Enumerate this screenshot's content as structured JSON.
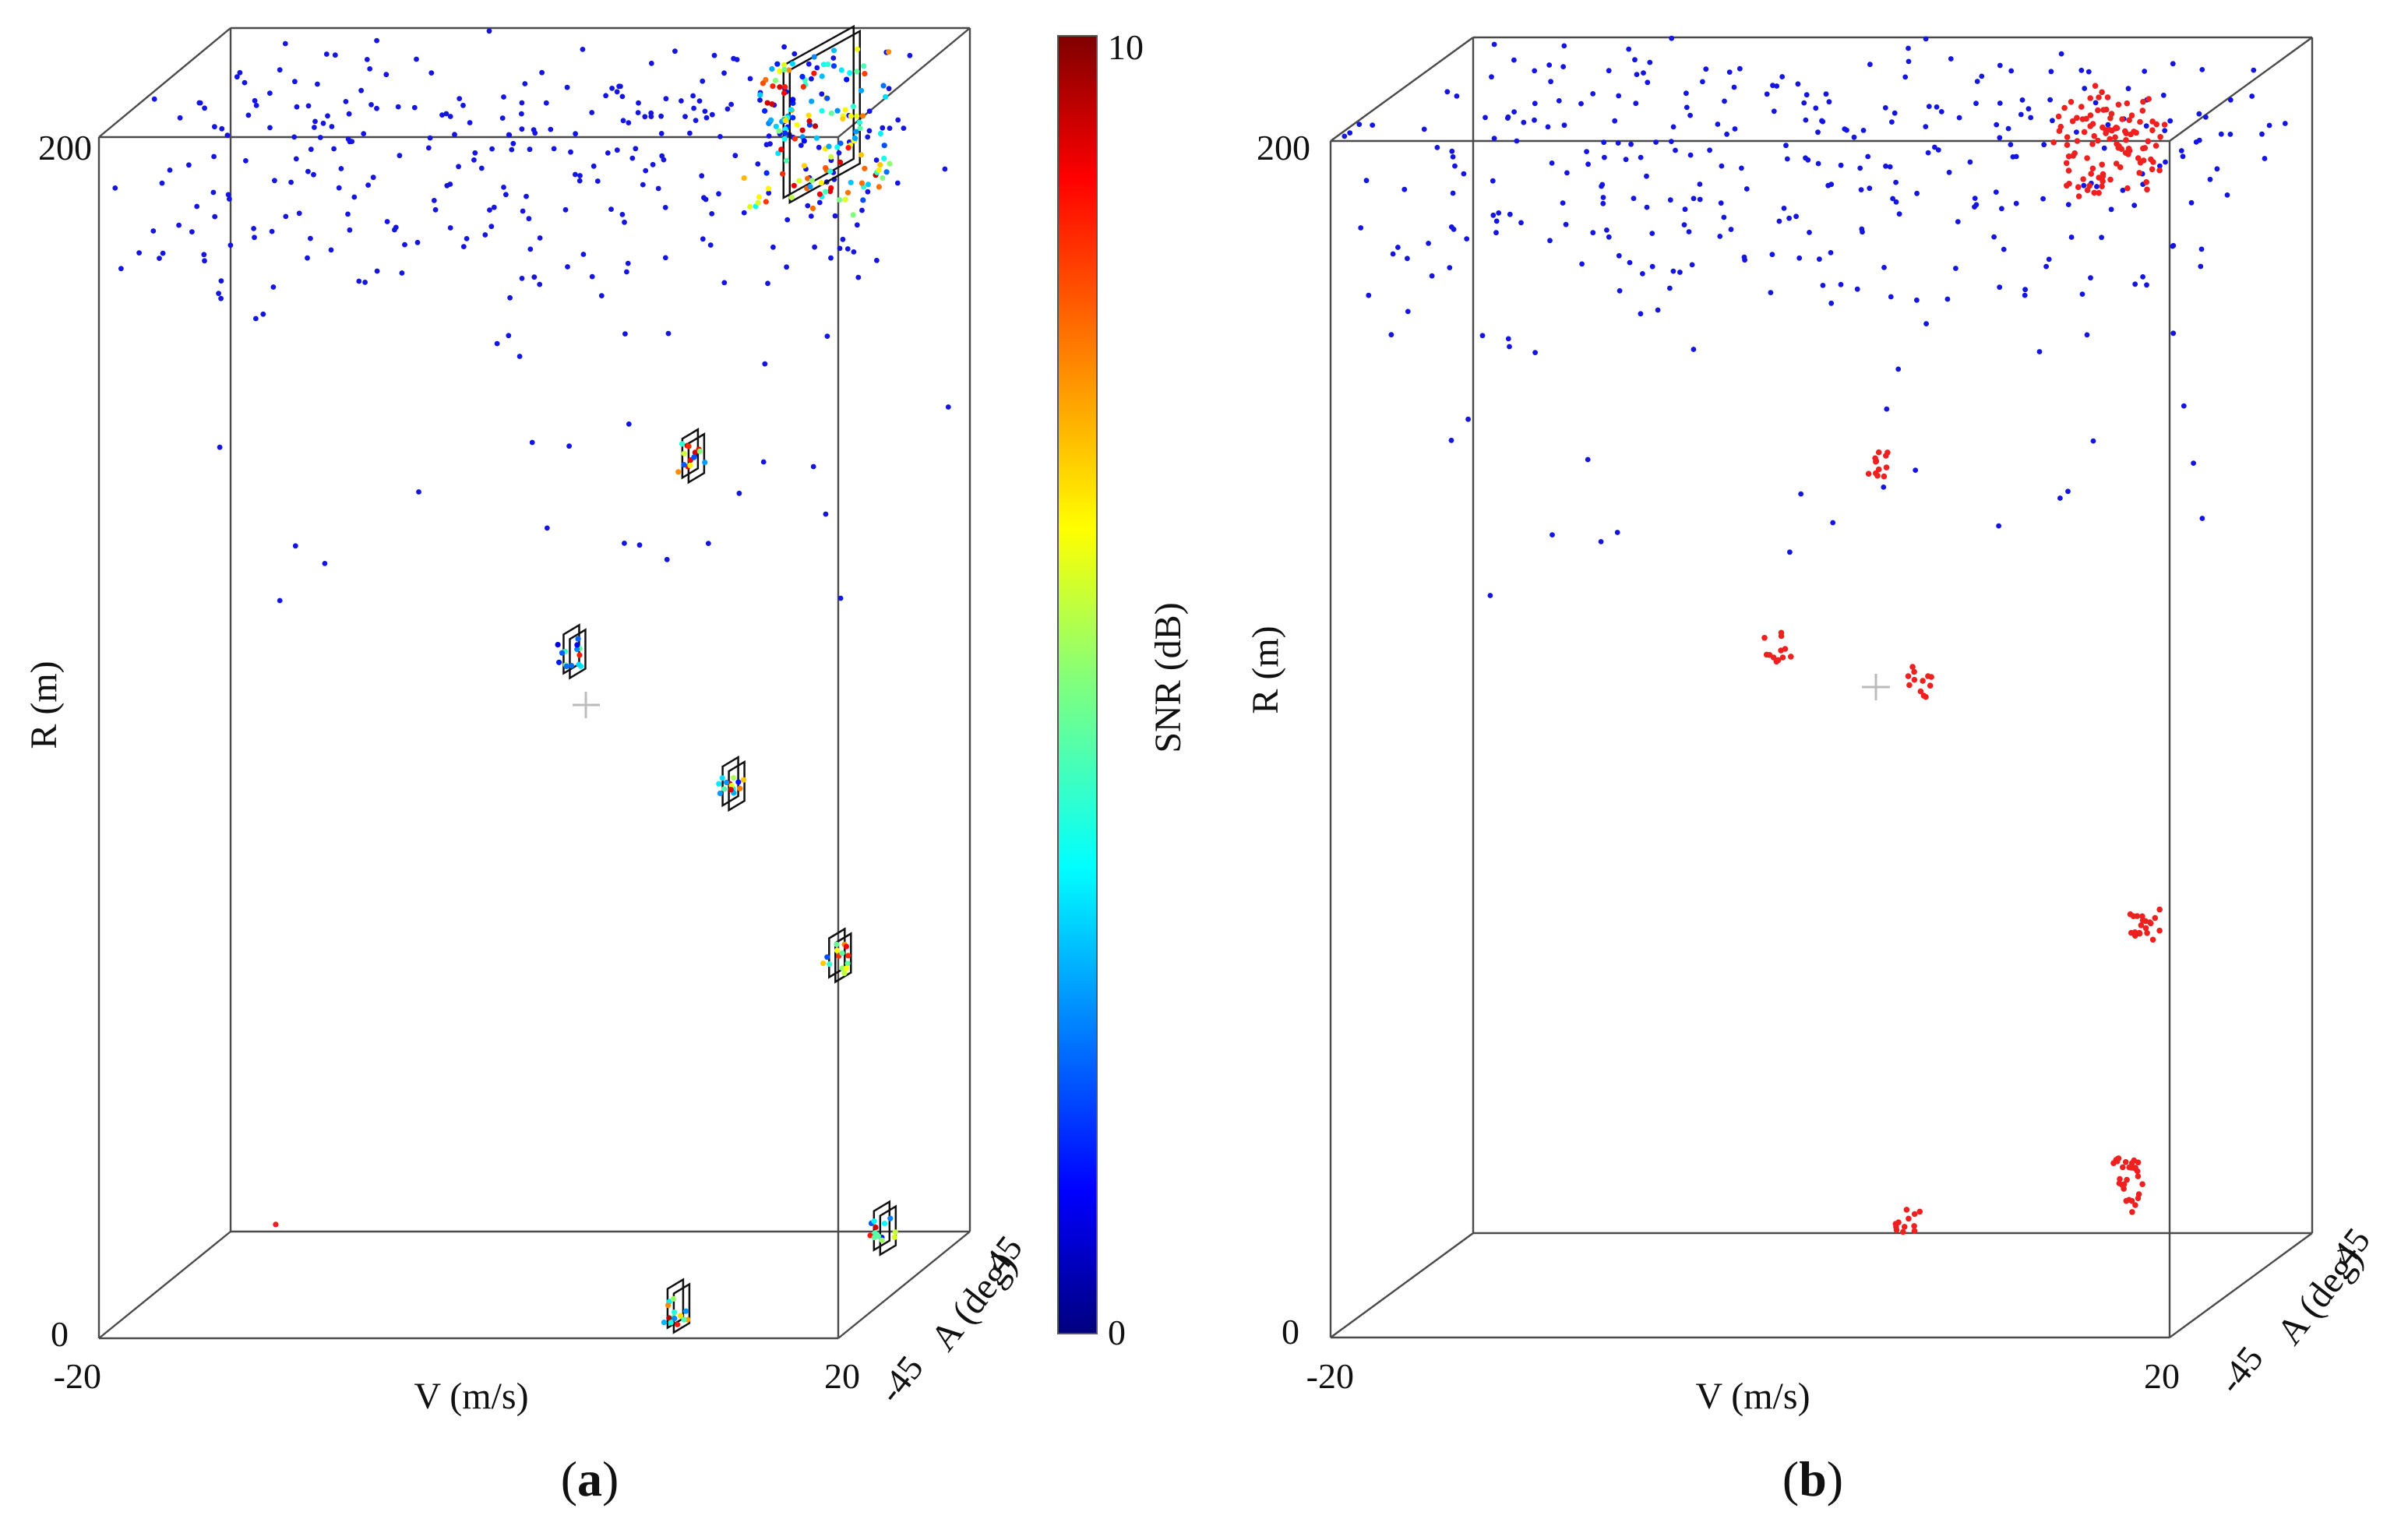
{
  "chart_data": [
    {
      "type": "scatter",
      "panel": "(a)",
      "panel_letter": "a",
      "xlabel": "V (m/s)",
      "ylabel": "R (m)",
      "zlabel": "A (deg)",
      "x_ticks": [
        "-20",
        "20"
      ],
      "y_ticks": [
        "0",
        "200"
      ],
      "z_ticks": [
        "-45",
        "45"
      ],
      "xlim": [
        -20,
        20
      ],
      "ylim": [
        0,
        200
      ],
      "zlim": [
        -45,
        45
      ],
      "colorbar": {
        "label": "SNR (dB)",
        "ticks": [
          "0",
          "10"
        ],
        "range": [
          0,
          10
        ],
        "colormap": "jet"
      },
      "targets": [
        {
          "v": 2,
          "r": 105,
          "a": 0
        },
        {
          "v": 11,
          "r": 84,
          "a": -5
        },
        {
          "v": 7,
          "r": 134,
          "a": 18
        },
        {
          "v": 17,
          "r": 56,
          "a": -8
        },
        {
          "v": 18,
          "r": 7,
          "a": 10
        },
        {
          "v": 10,
          "r": 2,
          "a": -30
        },
        {
          "v": 13,
          "r": 186,
          "a": 30
        }
      ],
      "clutter_color": "#1515e0"
    },
    {
      "type": "scatter",
      "panel": "(b)",
      "panel_letter": "b",
      "xlabel": "V (m/s)",
      "ylabel": "R (m)",
      "zlabel": "A (deg)",
      "x_ticks": [
        "-20",
        "20"
      ],
      "y_ticks": [
        "0",
        "200"
      ],
      "z_ticks": [
        "-45",
        "45"
      ],
      "xlim": [
        -20,
        20
      ],
      "ylim": [
        0,
        200
      ],
      "zlim": [
        -45,
        45
      ],
      "targets": [
        {
          "v": -1,
          "r": 110,
          "a": -15
        },
        {
          "v": 5,
          "r": 102,
          "a": -5
        },
        {
          "v": 2,
          "r": 135,
          "a": 10
        },
        {
          "v": 16,
          "r": 62,
          "a": -8
        },
        {
          "v": 15,
          "r": 18,
          "a": -5
        },
        {
          "v": 6,
          "r": 15,
          "a": -25
        },
        {
          "v": 12,
          "r": 186,
          "a": 25
        }
      ],
      "detection_color": "#ee2020",
      "clutter_color": "#1515e0"
    }
  ]
}
